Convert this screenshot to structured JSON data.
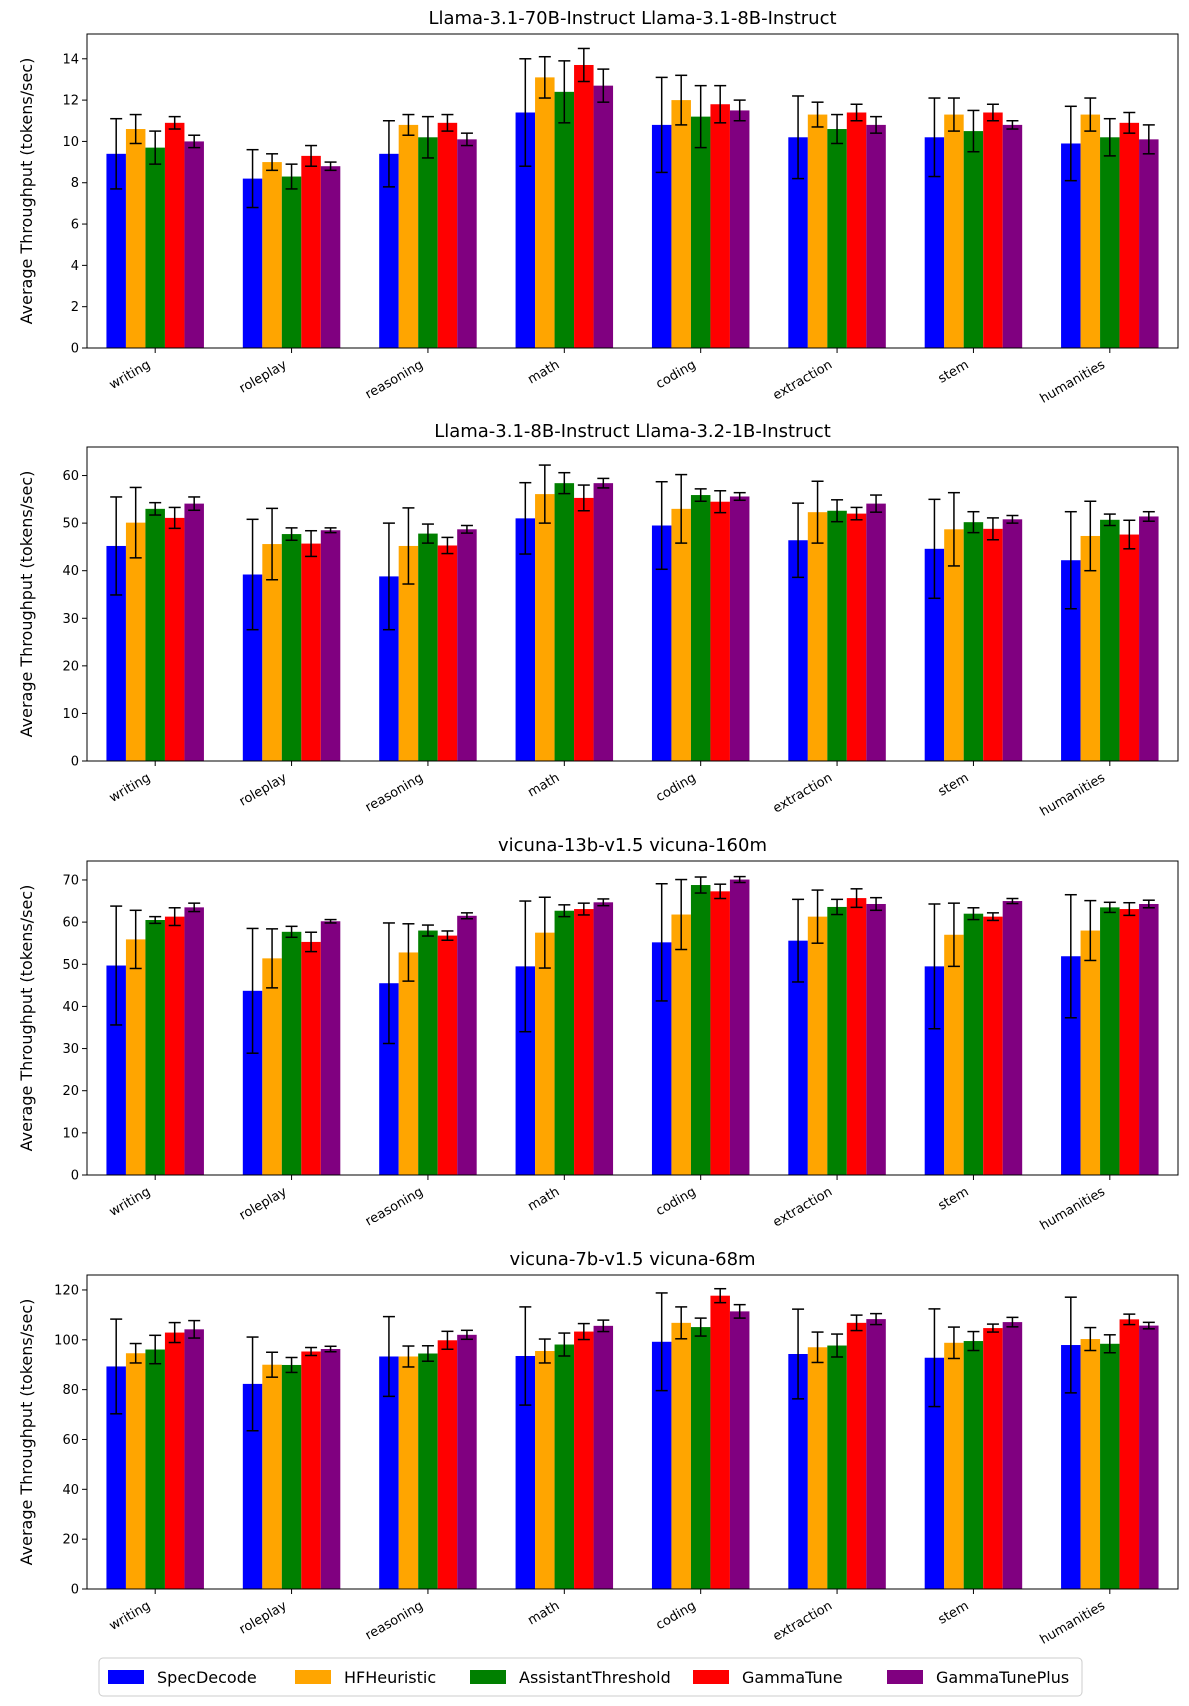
{
  "ylabel": "Average Throughput (tokens/sec)",
  "chart_data": [
    {
      "type": "bar",
      "title": "Llama-3.1-70B-Instruct Llama-3.1-8B-Instruct",
      "ylabel": "Average Throughput (tokens/sec)",
      "ylim": [
        0,
        15.2
      ],
      "yticks": [
        "0",
        "2",
        "4",
        "6",
        "8",
        "10",
        "12",
        "14"
      ],
      "categories": [
        "writing",
        "roleplay",
        "reasoning",
        "math",
        "coding",
        "extraction",
        "stem",
        "humanities"
      ],
      "series": [
        {
          "name": "SpecDecode",
          "values": [
            9.4,
            8.2,
            9.4,
            11.4,
            10.8,
            10.2,
            10.2,
            9.9
          ],
          "errors": [
            1.7,
            1.4,
            1.6,
            2.6,
            2.3,
            2.0,
            1.9,
            1.8
          ]
        },
        {
          "name": "HFHeuristic",
          "values": [
            10.6,
            9.0,
            10.8,
            13.1,
            12.0,
            11.3,
            11.3,
            11.3
          ],
          "errors": [
            0.7,
            0.4,
            0.5,
            1.0,
            1.2,
            0.6,
            0.8,
            0.8
          ]
        },
        {
          "name": "AssistantThreshold",
          "values": [
            9.7,
            8.3,
            10.2,
            12.4,
            11.2,
            10.6,
            10.5,
            10.2
          ],
          "errors": [
            0.8,
            0.6,
            1.0,
            1.5,
            1.5,
            0.7,
            1.0,
            0.9
          ]
        },
        {
          "name": "GammaTune",
          "values": [
            10.9,
            9.3,
            10.9,
            13.7,
            11.8,
            11.4,
            11.4,
            10.9
          ],
          "errors": [
            0.3,
            0.5,
            0.4,
            0.8,
            0.9,
            0.4,
            0.4,
            0.5
          ]
        },
        {
          "name": "GammaTunePlus",
          "values": [
            10.0,
            8.8,
            10.1,
            12.7,
            11.5,
            10.8,
            10.8,
            10.1
          ],
          "errors": [
            0.3,
            0.2,
            0.3,
            0.8,
            0.5,
            0.4,
            0.2,
            0.7
          ]
        }
      ]
    },
    {
      "type": "bar",
      "title": "Llama-3.1-8B-Instruct Llama-3.2-1B-Instruct",
      "ylabel": "Average Throughput (tokens/sec)",
      "ylim": [
        0,
        66
      ],
      "yticks": [
        "0",
        "10",
        "20",
        "30",
        "40",
        "50",
        "60"
      ],
      "categories": [
        "writing",
        "roleplay",
        "reasoning",
        "math",
        "coding",
        "extraction",
        "stem",
        "humanities"
      ],
      "series": [
        {
          "name": "SpecDecode",
          "values": [
            45.2,
            39.2,
            38.8,
            51.0,
            49.5,
            46.4,
            44.6,
            42.2
          ],
          "errors": [
            10.3,
            11.6,
            11.2,
            7.5,
            9.2,
            7.8,
            10.4,
            10.2
          ]
        },
        {
          "name": "HFHeuristic",
          "values": [
            50.1,
            45.6,
            45.2,
            56.1,
            53.0,
            52.3,
            48.7,
            47.3
          ],
          "errors": [
            7.4,
            7.5,
            8.0,
            6.1,
            7.2,
            6.5,
            7.7,
            7.3
          ]
        },
        {
          "name": "AssistantThreshold",
          "values": [
            53.0,
            47.7,
            47.8,
            58.4,
            55.9,
            52.6,
            50.2,
            50.7
          ],
          "errors": [
            1.3,
            1.3,
            2.0,
            2.2,
            1.3,
            2.3,
            2.2,
            1.2
          ]
        },
        {
          "name": "GammaTune",
          "values": [
            51.1,
            45.7,
            45.3,
            55.3,
            54.5,
            52.0,
            48.8,
            47.6
          ],
          "errors": [
            2.2,
            2.7,
            1.7,
            2.7,
            2.3,
            1.3,
            2.3,
            3.0
          ]
        },
        {
          "name": "GammaTunePlus",
          "values": [
            54.1,
            48.5,
            48.7,
            58.4,
            55.6,
            54.1,
            50.8,
            51.4
          ],
          "errors": [
            1.4,
            0.5,
            0.8,
            1.0,
            0.8,
            1.8,
            0.8,
            1.0
          ]
        }
      ]
    },
    {
      "type": "bar",
      "title": "vicuna-13b-v1.5 vicuna-160m",
      "ylabel": "Average Throughput (tokens/sec)",
      "ylim": [
        0,
        74.5
      ],
      "yticks": [
        "0",
        "10",
        "20",
        "30",
        "40",
        "50",
        "60",
        "70"
      ],
      "categories": [
        "writing",
        "roleplay",
        "reasoning",
        "math",
        "coding",
        "extraction",
        "stem",
        "humanities"
      ],
      "series": [
        {
          "name": "SpecDecode",
          "values": [
            49.7,
            43.7,
            45.5,
            49.5,
            55.2,
            55.6,
            49.5,
            51.9
          ],
          "errors": [
            14.1,
            14.8,
            14.3,
            15.5,
            13.9,
            9.8,
            14.8,
            14.6
          ]
        },
        {
          "name": "HFHeuristic",
          "values": [
            55.9,
            51.4,
            52.8,
            57.5,
            61.8,
            61.3,
            57.0,
            58.0
          ],
          "errors": [
            6.9,
            7.0,
            6.8,
            8.4,
            8.3,
            6.3,
            7.5,
            7.1
          ]
        },
        {
          "name": "AssistantThreshold",
          "values": [
            60.5,
            57.7,
            58.0,
            62.7,
            68.8,
            63.6,
            62.0,
            63.5
          ],
          "errors": [
            0.8,
            1.3,
            1.3,
            1.4,
            1.9,
            1.8,
            1.4,
            1.2
          ]
        },
        {
          "name": "GammaTune",
          "values": [
            61.3,
            55.3,
            56.8,
            63.1,
            67.3,
            65.7,
            61.3,
            63.1
          ],
          "errors": [
            2.1,
            2.3,
            1.1,
            1.4,
            1.7,
            2.2,
            0.9,
            1.5
          ]
        },
        {
          "name": "GammaTunePlus",
          "values": [
            63.5,
            60.2,
            61.5,
            64.7,
            70.1,
            64.3,
            65.0,
            64.3
          ],
          "errors": [
            1.0,
            0.4,
            0.7,
            0.8,
            0.7,
            1.5,
            0.6,
            0.9
          ]
        }
      ]
    },
    {
      "type": "bar",
      "title": "vicuna-7b-v1.5 vicuna-68m",
      "ylabel": "Average Throughput (tokens/sec)",
      "ylim": [
        0,
        126
      ],
      "yticks": [
        "0",
        "20",
        "40",
        "60",
        "80",
        "100",
        "120"
      ],
      "categories": [
        "writing",
        "roleplay",
        "reasoning",
        "math",
        "coding",
        "extraction",
        "stem",
        "humanities"
      ],
      "series": [
        {
          "name": "SpecDecode",
          "values": [
            89.3,
            82.3,
            93.3,
            93.5,
            99.2,
            94.3,
            92.8,
            97.9
          ],
          "errors": [
            19.0,
            18.8,
            16.0,
            19.7,
            19.6,
            18.0,
            19.6,
            19.2
          ]
        },
        {
          "name": "HFHeuristic",
          "values": [
            94.6,
            90.0,
            93.3,
            95.5,
            106.8,
            97.0,
            98.8,
            100.3
          ],
          "errors": [
            3.9,
            5.0,
            4.2,
            4.8,
            6.4,
            6.1,
            6.3,
            4.6
          ]
        },
        {
          "name": "AssistantThreshold",
          "values": [
            96.1,
            89.9,
            94.5,
            98.1,
            105.1,
            97.7,
            99.5,
            98.4
          ],
          "errors": [
            5.7,
            3.0,
            3.1,
            4.6,
            3.6,
            4.6,
            3.8,
            3.6
          ]
        },
        {
          "name": "GammaTune",
          "values": [
            102.9,
            95.3,
            99.8,
            103.3,
            117.7,
            106.8,
            104.7,
            108.2
          ],
          "errors": [
            4.0,
            1.6,
            3.6,
            3.2,
            2.8,
            3.1,
            1.6,
            2.1
          ]
        },
        {
          "name": "GammaTunePlus",
          "values": [
            104.2,
            96.3,
            102.0,
            105.6,
            111.4,
            108.3,
            107.1,
            105.7
          ],
          "errors": [
            3.5,
            1.1,
            1.8,
            2.3,
            2.7,
            2.2,
            1.9,
            1.3
          ]
        }
      ]
    }
  ],
  "legend": [
    {
      "label": "SpecDecode",
      "color": "#0000ff"
    },
    {
      "label": "HFHeuristic",
      "color": "#ffa500"
    },
    {
      "label": "AssistantThreshold",
      "color": "#008000"
    },
    {
      "label": "GammaTune",
      "color": "#ff0000"
    },
    {
      "label": "GammaTunePlus",
      "color": "#800080"
    }
  ]
}
